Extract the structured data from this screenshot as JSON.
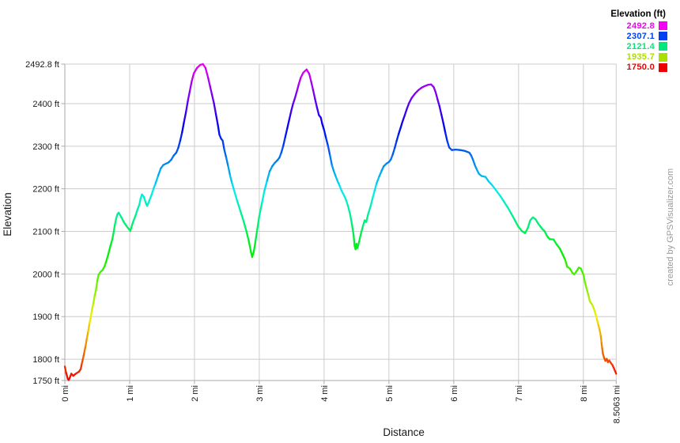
{
  "chart_data": {
    "type": "line",
    "title": "",
    "xlabel": "Distance",
    "ylabel": "Elevation",
    "x_unit": "mi",
    "y_unit": "ft",
    "xlim": [
      0,
      8.5063
    ],
    "ylim": [
      1750,
      2492.8
    ],
    "grid": true,
    "x_ticks": [
      {
        "v": 0,
        "label": "0 mi"
      },
      {
        "v": 1,
        "label": "1 mi"
      },
      {
        "v": 2,
        "label": "2 mi"
      },
      {
        "v": 3,
        "label": "3 mi"
      },
      {
        "v": 4,
        "label": "4 mi"
      },
      {
        "v": 5,
        "label": "5 mi"
      },
      {
        "v": 6,
        "label": "6 mi"
      },
      {
        "v": 7,
        "label": "7 mi"
      },
      {
        "v": 8,
        "label": "8 mi"
      },
      {
        "v": 8.5063,
        "label": "8.5063 mi"
      }
    ],
    "y_ticks": [
      {
        "v": 1750,
        "label": "1750 ft"
      },
      {
        "v": 1800,
        "label": "1800 ft"
      },
      {
        "v": 1900,
        "label": "1900 ft"
      },
      {
        "v": 2000,
        "label": "2000 ft"
      },
      {
        "v": 2100,
        "label": "2100 ft"
      },
      {
        "v": 2200,
        "label": "2200 ft"
      },
      {
        "v": 2300,
        "label": "2300 ft"
      },
      {
        "v": 2400,
        "label": "2400 ft"
      },
      {
        "v": 2492.8,
        "label": "2492.8 ft"
      }
    ],
    "legend": {
      "title": "Elevation (ft)",
      "position": "top-right",
      "entries": [
        {
          "label": "2492.8",
          "color": "#F500F5"
        },
        {
          "label": "2307.1",
          "color": "#0040F0"
        },
        {
          "label": "2121.4",
          "color": "#00E87A"
        },
        {
          "label": "1935.7",
          "color": "#AADF00"
        },
        {
          "label": "1750.0",
          "color": "#EE0000"
        }
      ]
    },
    "color_scale": {
      "min_ft": 1750,
      "max_ft": 2492.8,
      "hue_min": 0,
      "hue_max": 300
    },
    "watermark": "created by GPSVisualizer.com",
    "grid_color": "#CCCCCC",
    "axis_color": "#AAAAAA",
    "profile_mi_ft": [
      [
        0,
        1783
      ],
      [
        0.02,
        1768
      ],
      [
        0.045,
        1754
      ],
      [
        0.06,
        1751
      ],
      [
        0.08,
        1758
      ],
      [
        0.1,
        1766
      ],
      [
        0.13,
        1761
      ],
      [
        0.16,
        1765
      ],
      [
        0.19,
        1768
      ],
      [
        0.22,
        1771
      ],
      [
        0.245,
        1777
      ],
      [
        0.26,
        1788
      ],
      [
        0.28,
        1801
      ],
      [
        0.3,
        1816
      ],
      [
        0.32,
        1831
      ],
      [
        0.34,
        1849
      ],
      [
        0.36,
        1865
      ],
      [
        0.38,
        1884
      ],
      [
        0.4,
        1899
      ],
      [
        0.42,
        1917
      ],
      [
        0.44,
        1931
      ],
      [
        0.46,
        1949
      ],
      [
        0.48,
        1962
      ],
      [
        0.5,
        1983
      ],
      [
        0.52,
        1998
      ],
      [
        0.55,
        2005
      ],
      [
        0.58,
        2009
      ],
      [
        0.61,
        2017
      ],
      [
        0.635,
        2028
      ],
      [
        0.67,
        2046
      ],
      [
        0.705,
        2067
      ],
      [
        0.73,
        2080
      ],
      [
        0.75,
        2095
      ],
      [
        0.77,
        2114
      ],
      [
        0.79,
        2129
      ],
      [
        0.81,
        2140
      ],
      [
        0.83,
        2144
      ],
      [
        0.87,
        2134
      ],
      [
        0.91,
        2122
      ],
      [
        0.95,
        2113
      ],
      [
        0.99,
        2105
      ],
      [
        1.01,
        2101
      ],
      [
        1.05,
        2121
      ],
      [
        1.09,
        2137
      ],
      [
        1.12,
        2151
      ],
      [
        1.15,
        2163
      ],
      [
        1.17,
        2178
      ],
      [
        1.19,
        2187
      ],
      [
        1.22,
        2181
      ],
      [
        1.25,
        2166
      ],
      [
        1.27,
        2160
      ],
      [
        1.29,
        2167
      ],
      [
        1.32,
        2179
      ],
      [
        1.34,
        2187
      ],
      [
        1.37,
        2201
      ],
      [
        1.4,
        2213
      ],
      [
        1.44,
        2231
      ],
      [
        1.48,
        2248
      ],
      [
        1.52,
        2256
      ],
      [
        1.56,
        2259
      ],
      [
        1.6,
        2262
      ],
      [
        1.64,
        2268
      ],
      [
        1.68,
        2278
      ],
      [
        1.72,
        2285
      ],
      [
        1.75,
        2296
      ],
      [
        1.78,
        2313
      ],
      [
        1.81,
        2333
      ],
      [
        1.84,
        2358
      ],
      [
        1.87,
        2381
      ],
      [
        1.9,
        2408
      ],
      [
        1.93,
        2431
      ],
      [
        1.96,
        2454
      ],
      [
        1.99,
        2471
      ],
      [
        2.04,
        2484
      ],
      [
        2.09,
        2491
      ],
      [
        2.13,
        2492.8
      ],
      [
        2.17,
        2484
      ],
      [
        2.21,
        2461
      ],
      [
        2.24,
        2441
      ],
      [
        2.27,
        2421
      ],
      [
        2.3,
        2401
      ],
      [
        2.33,
        2376
      ],
      [
        2.36,
        2351
      ],
      [
        2.385,
        2327
      ],
      [
        2.41,
        2318
      ],
      [
        2.435,
        2313
      ],
      [
        2.46,
        2292
      ],
      [
        2.49,
        2273
      ],
      [
        2.52,
        2253
      ],
      [
        2.55,
        2231
      ],
      [
        2.58,
        2213
      ],
      [
        2.61,
        2197
      ],
      [
        2.66,
        2171
      ],
      [
        2.71,
        2147
      ],
      [
        2.76,
        2123
      ],
      [
        2.8,
        2101
      ],
      [
        2.84,
        2076
      ],
      [
        2.87,
        2053
      ],
      [
        2.89,
        2040
      ],
      [
        2.915,
        2052
      ],
      [
        2.94,
        2076
      ],
      [
        2.97,
        2106
      ],
      [
        3,
        2136
      ],
      [
        3.04,
        2166
      ],
      [
        3.08,
        2196
      ],
      [
        3.12,
        2219
      ],
      [
        3.16,
        2241
      ],
      [
        3.2,
        2253
      ],
      [
        3.24,
        2261
      ],
      [
        3.28,
        2267
      ],
      [
        3.31,
        2273
      ],
      [
        3.34,
        2285
      ],
      [
        3.37,
        2301
      ],
      [
        3.4,
        2321
      ],
      [
        3.43,
        2341
      ],
      [
        3.46,
        2361
      ],
      [
        3.49,
        2381
      ],
      [
        3.52,
        2399
      ],
      [
        3.55,
        2413
      ],
      [
        3.58,
        2429
      ],
      [
        3.61,
        2446
      ],
      [
        3.64,
        2461
      ],
      [
        3.68,
        2473
      ],
      [
        3.73,
        2480
      ],
      [
        3.77,
        2470
      ],
      [
        3.8,
        2452
      ],
      [
        3.83,
        2432
      ],
      [
        3.86,
        2411
      ],
      [
        3.89,
        2391
      ],
      [
        3.92,
        2373
      ],
      [
        3.95,
        2367
      ],
      [
        3.97,
        2353
      ],
      [
        4,
        2338
      ],
      [
        4.03,
        2319
      ],
      [
        4.06,
        2301
      ],
      [
        4.09,
        2279
      ],
      [
        4.12,
        2256
      ],
      [
        4.15,
        2241
      ],
      [
        4.18,
        2229
      ],
      [
        4.21,
        2217
      ],
      [
        4.24,
        2207
      ],
      [
        4.27,
        2195
      ],
      [
        4.31,
        2184
      ],
      [
        4.34,
        2173
      ],
      [
        4.37,
        2159
      ],
      [
        4.4,
        2141
      ],
      [
        4.43,
        2116
      ],
      [
        4.455,
        2091
      ],
      [
        4.47,
        2066
      ],
      [
        4.485,
        2058
      ],
      [
        4.5,
        2071
      ],
      [
        4.515,
        2061
      ],
      [
        4.54,
        2076
      ],
      [
        4.57,
        2096
      ],
      [
        4.6,
        2113
      ],
      [
        4.625,
        2126
      ],
      [
        4.65,
        2122
      ],
      [
        4.68,
        2141
      ],
      [
        4.72,
        2161
      ],
      [
        4.75,
        2179
      ],
      [
        4.78,
        2196
      ],
      [
        4.81,
        2213
      ],
      [
        4.85,
        2229
      ],
      [
        4.89,
        2243
      ],
      [
        4.92,
        2253
      ],
      [
        4.96,
        2259
      ],
      [
        5,
        2263
      ],
      [
        5.03,
        2269
      ],
      [
        5.06,
        2281
      ],
      [
        5.09,
        2296
      ],
      [
        5.12,
        2313
      ],
      [
        5.15,
        2329
      ],
      [
        5.18,
        2343
      ],
      [
        5.21,
        2358
      ],
      [
        5.24,
        2371
      ],
      [
        5.28,
        2389
      ],
      [
        5.31,
        2401
      ],
      [
        5.35,
        2413
      ],
      [
        5.4,
        2423
      ],
      [
        5.45,
        2431
      ],
      [
        5.5,
        2437
      ],
      [
        5.55,
        2441
      ],
      [
        5.6,
        2444
      ],
      [
        5.65,
        2445
      ],
      [
        5.69,
        2439
      ],
      [
        5.72,
        2427
      ],
      [
        5.75,
        2410
      ],
      [
        5.78,
        2394
      ],
      [
        5.81,
        2374
      ],
      [
        5.84,
        2354
      ],
      [
        5.87,
        2332
      ],
      [
        5.9,
        2312
      ],
      [
        5.93,
        2297
      ],
      [
        5.97,
        2291
      ],
      [
        6.03,
        2292
      ],
      [
        6.1,
        2291
      ],
      [
        6.17,
        2289
      ],
      [
        6.24,
        2285
      ],
      [
        6.27,
        2278
      ],
      [
        6.3,
        2267
      ],
      [
        6.33,
        2254
      ],
      [
        6.36,
        2244
      ],
      [
        6.39,
        2235
      ],
      [
        6.43,
        2230
      ],
      [
        6.49,
        2228
      ],
      [
        6.54,
        2217
      ],
      [
        6.59,
        2209
      ],
      [
        6.65,
        2197
      ],
      [
        6.71,
        2185
      ],
      [
        6.77,
        2171
      ],
      [
        6.83,
        2157
      ],
      [
        6.89,
        2141
      ],
      [
        6.94,
        2127
      ],
      [
        6.99,
        2113
      ],
      [
        7.05,
        2101
      ],
      [
        7.1,
        2096
      ],
      [
        7.14,
        2107
      ],
      [
        7.18,
        2126
      ],
      [
        7.22,
        2133
      ],
      [
        7.26,
        2129
      ],
      [
        7.3,
        2119
      ],
      [
        7.34,
        2111
      ],
      [
        7.37,
        2105
      ],
      [
        7.4,
        2101
      ],
      [
        7.44,
        2089
      ],
      [
        7.48,
        2082
      ],
      [
        7.54,
        2081
      ],
      [
        7.59,
        2069
      ],
      [
        7.64,
        2059
      ],
      [
        7.68,
        2046
      ],
      [
        7.72,
        2033
      ],
      [
        7.75,
        2017
      ],
      [
        7.79,
        2013
      ],
      [
        7.83,
        2003
      ],
      [
        7.86,
        1999
      ],
      [
        7.9,
        2008
      ],
      [
        7.93,
        2015
      ],
      [
        7.96,
        2013
      ],
      [
        8,
        1999
      ],
      [
        8.02,
        1984
      ],
      [
        8.04,
        1971
      ],
      [
        8.06,
        1960
      ],
      [
        8.08,
        1949
      ],
      [
        8.1,
        1936
      ],
      [
        8.14,
        1927
      ],
      [
        8.17,
        1915
      ],
      [
        8.19,
        1905
      ],
      [
        8.21,
        1893
      ],
      [
        8.23,
        1881
      ],
      [
        8.25,
        1869
      ],
      [
        8.27,
        1854
      ],
      [
        8.28,
        1838
      ],
      [
        8.29,
        1826
      ],
      [
        8.3,
        1814
      ],
      [
        8.32,
        1803
      ],
      [
        8.34,
        1796
      ],
      [
        8.36,
        1801
      ],
      [
        8.38,
        1793
      ],
      [
        8.4,
        1797
      ],
      [
        8.42,
        1792
      ],
      [
        8.45,
        1786
      ],
      [
        8.47,
        1779
      ],
      [
        8.49,
        1772
      ],
      [
        8.5063,
        1766
      ]
    ]
  }
}
